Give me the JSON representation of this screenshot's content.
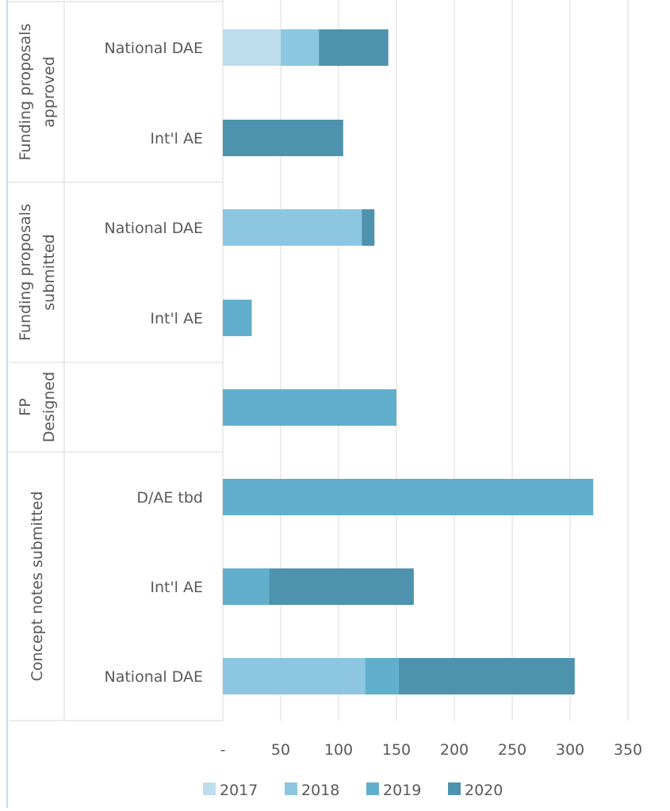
{
  "chart_data": {
    "type": "bar",
    "orientation": "horizontal",
    "stacked": true,
    "title": "",
    "xlabel": "",
    "ylabel": "",
    "xlim": [
      0,
      350
    ],
    "x_ticks": [
      {
        "value": 0,
        "label": "-"
      },
      {
        "value": 50,
        "label": "50"
      },
      {
        "value": 100,
        "label": "100"
      },
      {
        "value": 150,
        "label": "150"
      },
      {
        "value": 200,
        "label": "200"
      },
      {
        "value": 250,
        "label": "250"
      },
      {
        "value": 300,
        "label": "300"
      },
      {
        "value": 350,
        "label": "350"
      }
    ],
    "grid": "vertical",
    "legend_position": "bottom",
    "groups": [
      {
        "label": "Funding proposals approved",
        "label_lines": [
          "Funding proposals",
          "approved"
        ],
        "categories": [
          "National DAE",
          "Int'l AE"
        ]
      },
      {
        "label": "Funding proposals submitted",
        "label_lines": [
          "Funding proposals",
          "submitted"
        ],
        "categories": [
          "National DAE",
          "Int'l AE"
        ]
      },
      {
        "label": "FP Designed",
        "label_lines": [
          "FP",
          "Designed"
        ],
        "categories": [
          ""
        ]
      },
      {
        "label": "Concept notes submitted",
        "label_lines": [
          "Concept notes submitted"
        ],
        "categories": [
          "D/AE tbd",
          "Int'l AE",
          "National DAE"
        ]
      }
    ],
    "series": [
      {
        "name": "2017",
        "color": "#bddcec",
        "values": [
          50,
          0,
          0,
          0,
          0,
          0,
          0,
          0
        ]
      },
      {
        "name": "2018",
        "color": "#8dc6e0",
        "values": [
          33,
          0,
          120,
          0,
          0,
          0,
          0,
          123
        ]
      },
      {
        "name": "2019",
        "color": "#61afcd",
        "values": [
          0,
          0,
          0,
          25,
          150,
          320,
          40,
          29
        ]
      },
      {
        "name": "2020",
        "color": "#4e93ad",
        "values": [
          60,
          104,
          11,
          0,
          0,
          0,
          125,
          152
        ]
      }
    ]
  }
}
